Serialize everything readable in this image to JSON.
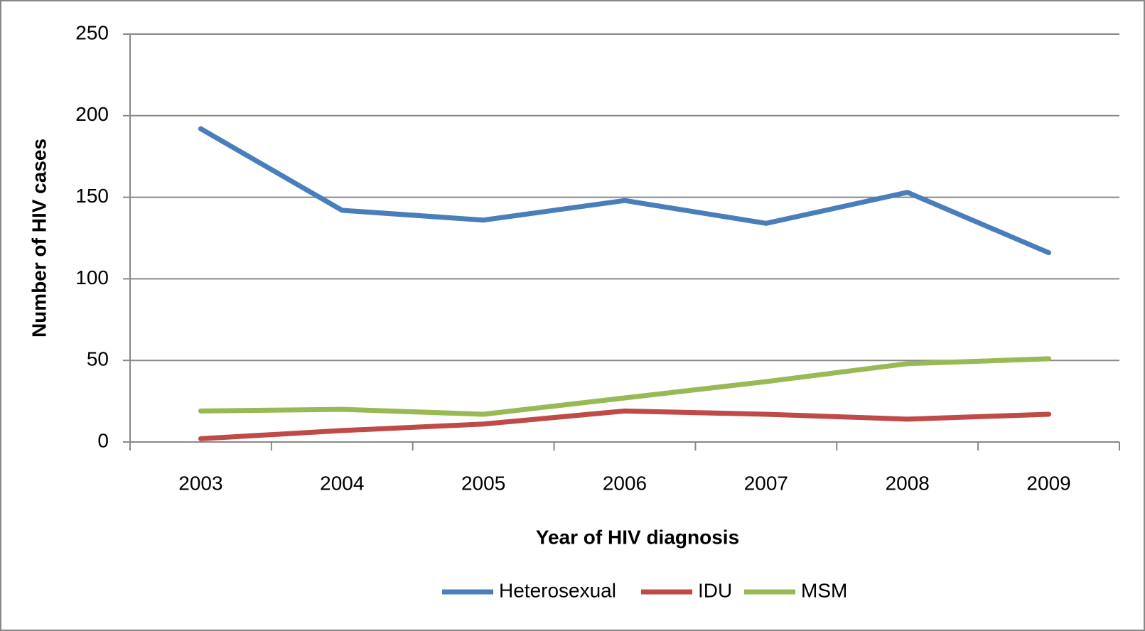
{
  "chart_data": {
    "type": "line",
    "x_label": "Year of HIV diagnosis",
    "y_label": "Number of HIV cases",
    "categories": [
      "2003",
      "2004",
      "2005",
      "2006",
      "2007",
      "2008",
      "2009"
    ],
    "series": [
      {
        "name": "Heterosexual",
        "color": "#4a7ebb",
        "values": [
          192,
          142,
          136,
          148,
          134,
          153,
          116
        ]
      },
      {
        "name": "IDU",
        "color": "#be4b48",
        "values": [
          2,
          7,
          11,
          19,
          17,
          14,
          17
        ]
      },
      {
        "name": "MSM",
        "color": "#98b954",
        "values": [
          19,
          20,
          17,
          27,
          37,
          48,
          51
        ]
      }
    ],
    "ylim": [
      0,
      250
    ],
    "yticks": [
      0,
      50,
      100,
      150,
      200,
      250
    ],
    "grid": true,
    "legend": "bottom"
  }
}
